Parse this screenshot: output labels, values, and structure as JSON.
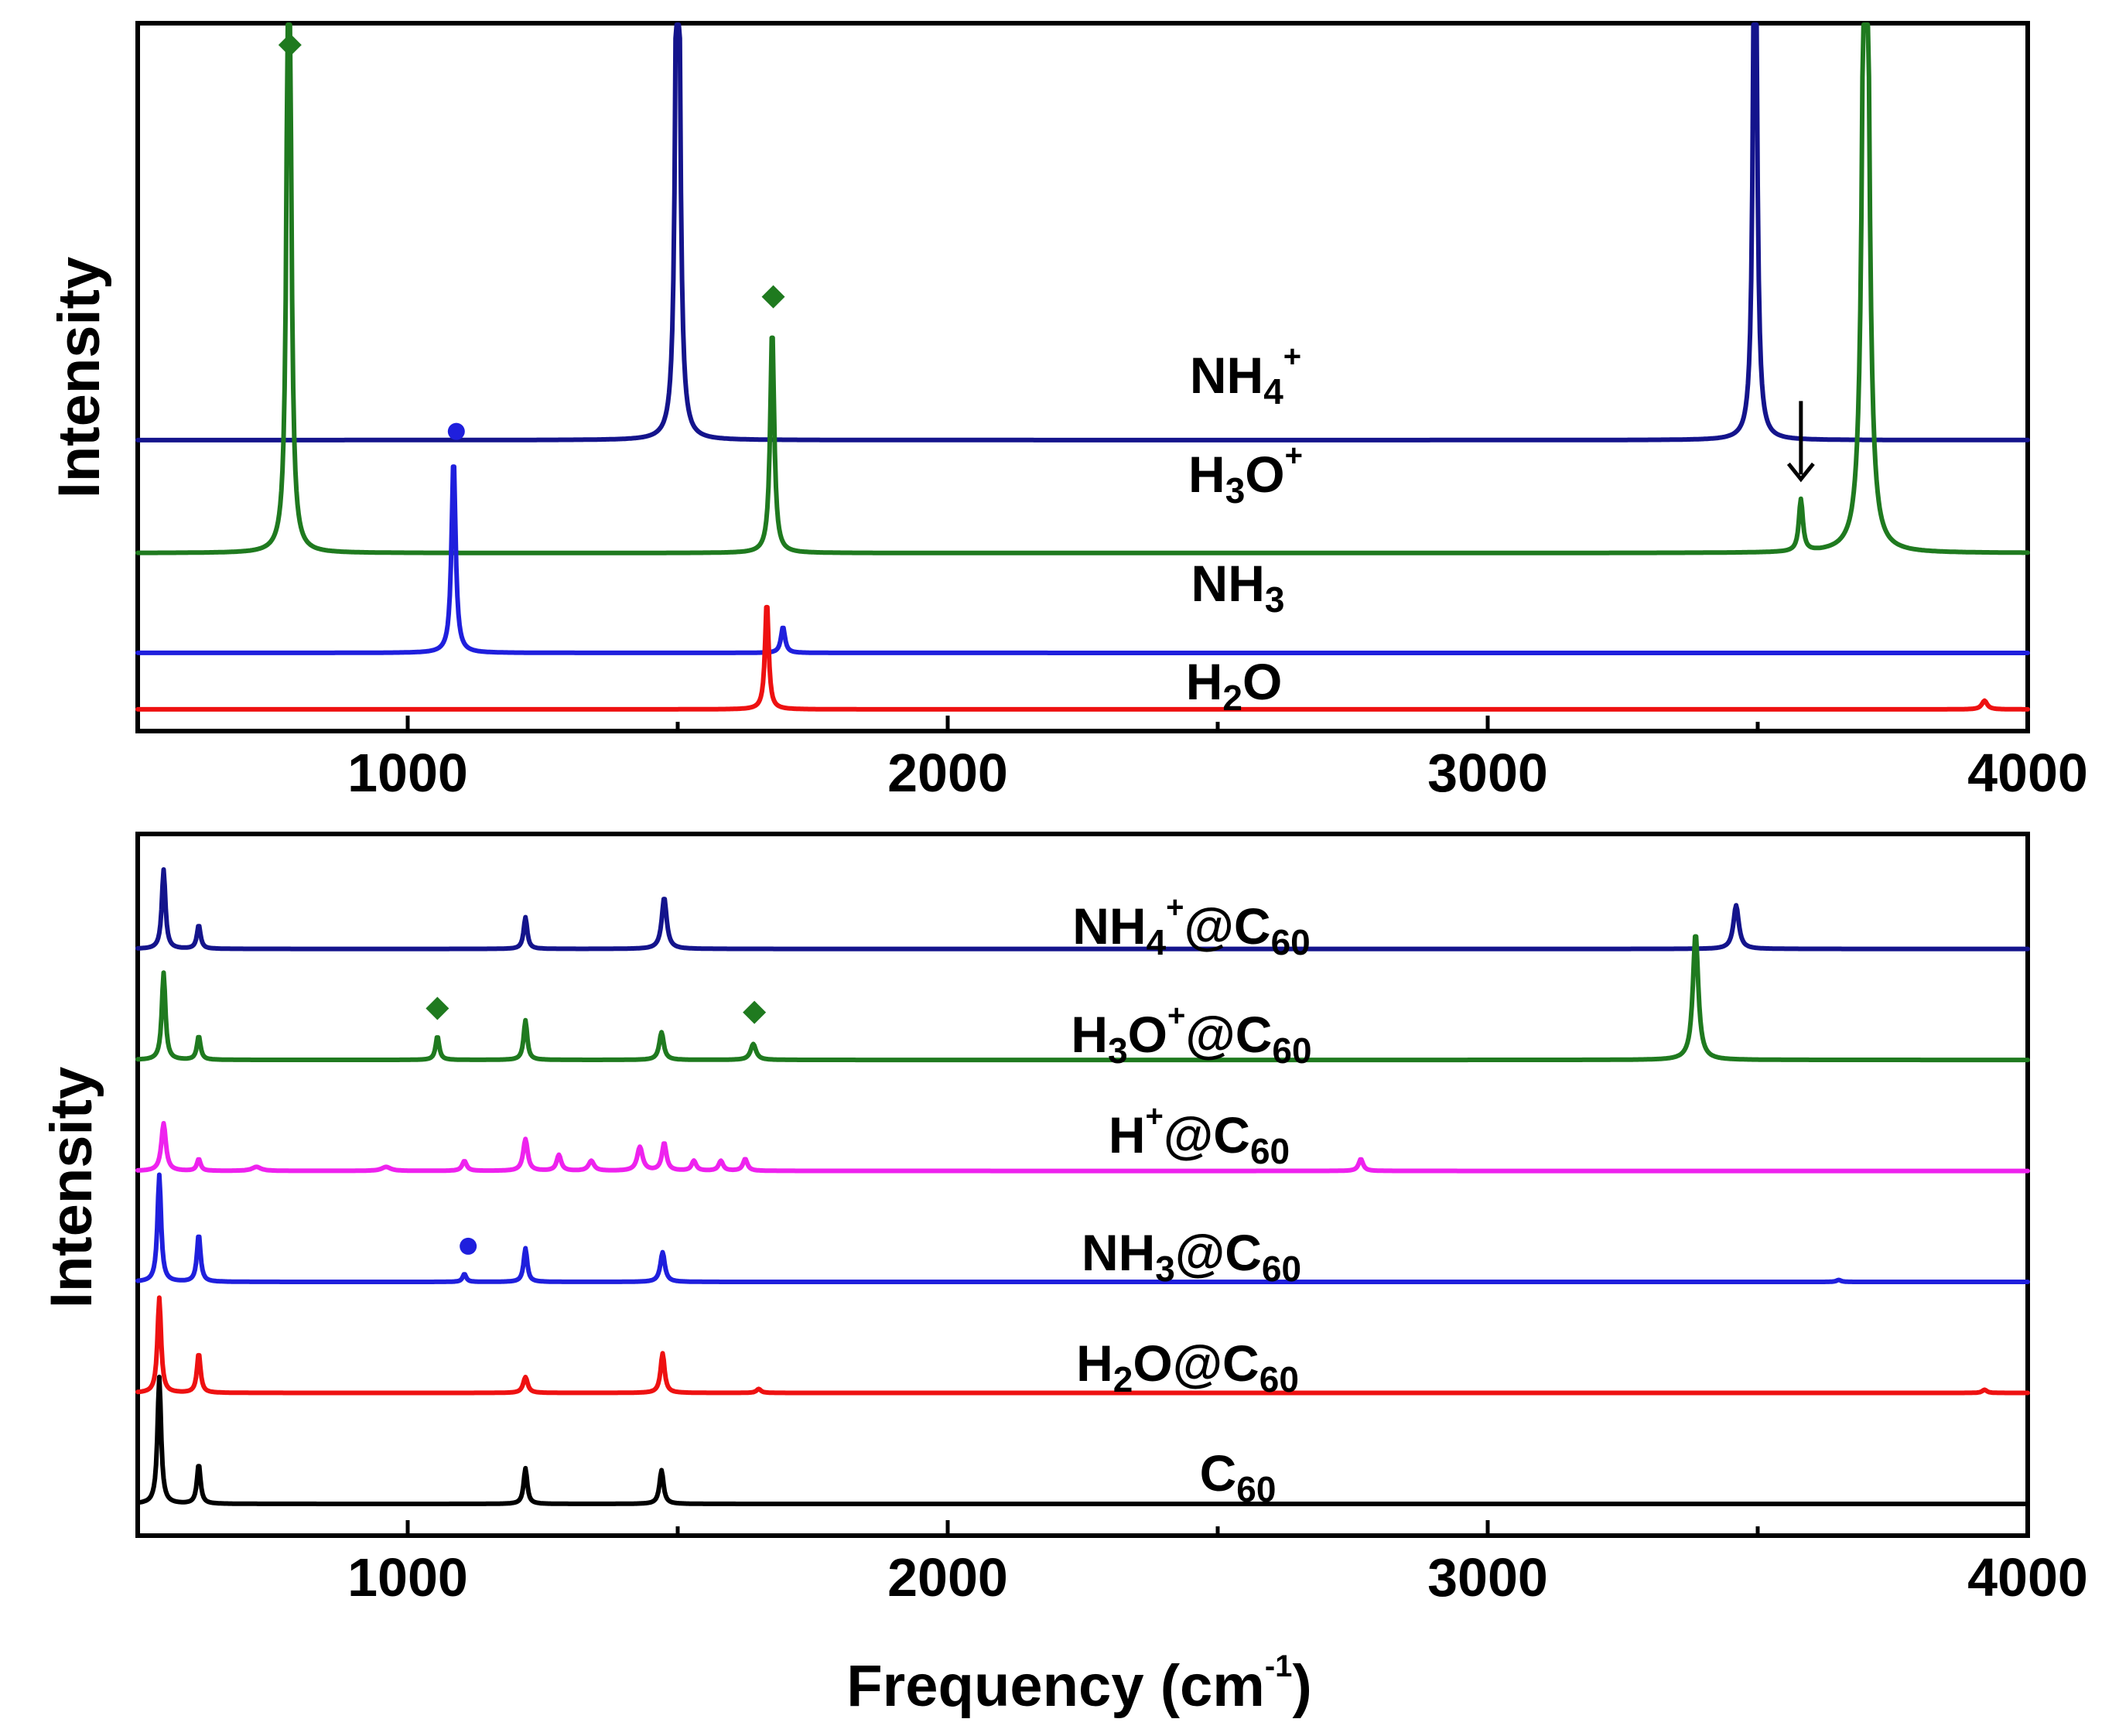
{
  "colors": {
    "navy": "#14148c",
    "green": "#1f7a1f",
    "blue": "#1f1fdd",
    "red": "#ee1111",
    "magenta": "#ee22ee",
    "black": "#000000"
  },
  "chart_data": [
    {
      "type": "line",
      "panel": "top",
      "title": "",
      "xlabel": "",
      "ylabel": "Intensity",
      "xlim": [
        500,
        4000
      ],
      "xticks": [
        1000,
        2000,
        3000,
        4000
      ],
      "xtick_labels": [
        "1000",
        "2000",
        "3000",
        "4000"
      ],
      "grid": false,
      "series": [
        {
          "id": "nh4",
          "label_main": "NH",
          "label_sub": "4",
          "label_sup": "+",
          "label_tail": "",
          "color": "#14148c",
          "baseline": 0.62,
          "peaks": [
            [
              1500,
              1.85,
              8
            ],
            [
              3495,
              1.5,
              8
            ]
          ]
        },
        {
          "id": "h3o",
          "label_main": "H",
          "label_sub": "3",
          "label_sup": "+",
          "label_tail": "O",
          "color": "#1f7a1f",
          "baseline": 0.36,
          "peaks": [
            [
              780,
              1.9,
              8
            ],
            [
              1675,
              0.52,
              9
            ],
            [
              3580,
              0.12,
              9
            ],
            [
              3700,
              2.4,
              11
            ]
          ]
        },
        {
          "id": "nh3",
          "label_main": "NH",
          "label_sub": "3",
          "label_sup": "",
          "label_tail": "",
          "color": "#1f1fdd",
          "baseline": 0.13,
          "peaks": [
            [
              1085,
              0.45,
              9
            ],
            [
              1695,
              0.06,
              9
            ]
          ]
        },
        {
          "id": "h2o",
          "label_main": "H",
          "label_sub": "2",
          "label_sup": "",
          "label_tail": "O",
          "color": "#ee1111",
          "baseline": 0.0,
          "peaks": [
            [
              1665,
              0.25,
              8
            ],
            [
              3920,
              0.02,
              12
            ]
          ]
        }
      ],
      "markers": [
        {
          "type": "diamond",
          "x": 782,
          "y": 1.53,
          "color": "#1f7a1f"
        },
        {
          "type": "diamond",
          "x": 1677,
          "y": 0.95,
          "color": "#1f7a1f"
        },
        {
          "type": "circle",
          "x": 1090,
          "y": 0.64,
          "color": "#1f1fdd"
        },
        {
          "type": "arrow",
          "x": 3580,
          "y_from": 0.71,
          "y_to": 0.53,
          "color": "#000000"
        }
      ],
      "ylim": [
        -0.05,
        1.58
      ]
    },
    {
      "type": "line",
      "panel": "bottom",
      "title": "",
      "xlabel": "Frequency (cm",
      "xlabel_sup": "-1",
      "xlabel_tail": ")",
      "ylabel": "Intensity",
      "xlim": [
        500,
        4000
      ],
      "xticks": [
        1000,
        2000,
        3000,
        4000
      ],
      "xtick_labels": [
        "1000",
        "2000",
        "3000",
        "4000"
      ],
      "grid": false,
      "series": [
        {
          "id": "nh4c60",
          "label_main": "NH",
          "label_sub": "4",
          "label_sup": "+",
          "label_tail": "@C",
          "label_sub2": "60",
          "color": "#14148c",
          "baseline": 1.14,
          "peaks": [
            [
              548,
              0.2,
              8
            ],
            [
              613,
              0.06,
              8
            ],
            [
              1218,
              0.08,
              8
            ],
            [
              1475,
              0.13,
              11
            ],
            [
              3460,
              0.11,
              12
            ]
          ]
        },
        {
          "id": "h3oc60",
          "label_main": "H",
          "label_sub": "3",
          "label_sup": "+",
          "label_tail": "O",
          "label_tail2": "@C",
          "label_sub2": "60",
          "color": "#1f7a1f",
          "baseline": 0.86,
          "peaks": [
            [
              548,
              0.22,
              8
            ],
            [
              613,
              0.06,
              8
            ],
            [
              1055,
              0.06,
              8
            ],
            [
              1218,
              0.1,
              8
            ],
            [
              1470,
              0.07,
              10
            ],
            [
              1640,
              0.04,
              12
            ],
            [
              3385,
              0.32,
              12
            ]
          ]
        },
        {
          "id": "hc60",
          "label_main": "H",
          "label_sub": "",
          "label_sup": "+",
          "label_tail": "@C",
          "label_sub2": "60",
          "color": "#ee22ee",
          "baseline": 0.58,
          "peaks": [
            [
              548,
              0.12,
              10
            ],
            [
              613,
              0.03,
              8
            ],
            [
              720,
              0.01,
              20
            ],
            [
              960,
              0.01,
              20
            ],
            [
              1105,
              0.025,
              10
            ],
            [
              1218,
              0.08,
              10
            ],
            [
              1280,
              0.04,
              10
            ],
            [
              1340,
              0.025,
              12
            ],
            [
              1430,
              0.06,
              12
            ],
            [
              1475,
              0.07,
              10
            ],
            [
              1530,
              0.025,
              10
            ],
            [
              1580,
              0.025,
              10
            ],
            [
              1625,
              0.03,
              10
            ],
            [
              2765,
              0.03,
              10
            ]
          ]
        },
        {
          "id": "nh3c60",
          "label_main": "NH",
          "label_sub": "3",
          "label_sup": "",
          "label_tail": "@C",
          "label_sub2": "60",
          "color": "#1f1fdd",
          "baseline": 0.3,
          "peaks": [
            [
              540,
              0.27,
              8
            ],
            [
              613,
              0.12,
              8
            ],
            [
              1105,
              0.02,
              8
            ],
            [
              1218,
              0.085,
              8
            ],
            [
              1472,
              0.075,
              10
            ],
            [
              3650,
              0.005,
              10
            ]
          ]
        },
        {
          "id": "h2oc60",
          "label_main": "H",
          "label_sub": "2",
          "label_sup": "",
          "label_tail": "O",
          "label_tail2": "@C",
          "label_sub2": "60",
          "color": "#ee1111",
          "baseline": 0.02,
          "peaks": [
            [
              540,
              0.24,
              8
            ],
            [
              613,
              0.1,
              8
            ],
            [
              1218,
              0.04,
              10
            ],
            [
              1472,
              0.1,
              9
            ],
            [
              1650,
              0.01,
              10
            ],
            [
              3920,
              0.008,
              10
            ]
          ]
        },
        {
          "id": "c60",
          "label_main": "C",
          "label_sub": "60",
          "label_sup": "",
          "label_tail": "",
          "color": "#000000",
          "baseline": -0.26,
          "peaks": [
            [
              540,
              0.32,
              8
            ],
            [
              613,
              0.1,
              8
            ],
            [
              1218,
              0.09,
              8
            ],
            [
              1470,
              0.085,
              9
            ]
          ]
        }
      ],
      "markers": [
        {
          "type": "diamond",
          "x": 1055,
          "y": 0.99,
          "color": "#1f7a1f"
        },
        {
          "type": "diamond",
          "x": 1642,
          "y": 0.98,
          "color": "#1f7a1f"
        },
        {
          "type": "circle",
          "x": 1112,
          "y": 0.39,
          "color": "#1f1fdd"
        }
      ],
      "ylim": [
        -0.34,
        1.43
      ]
    }
  ]
}
